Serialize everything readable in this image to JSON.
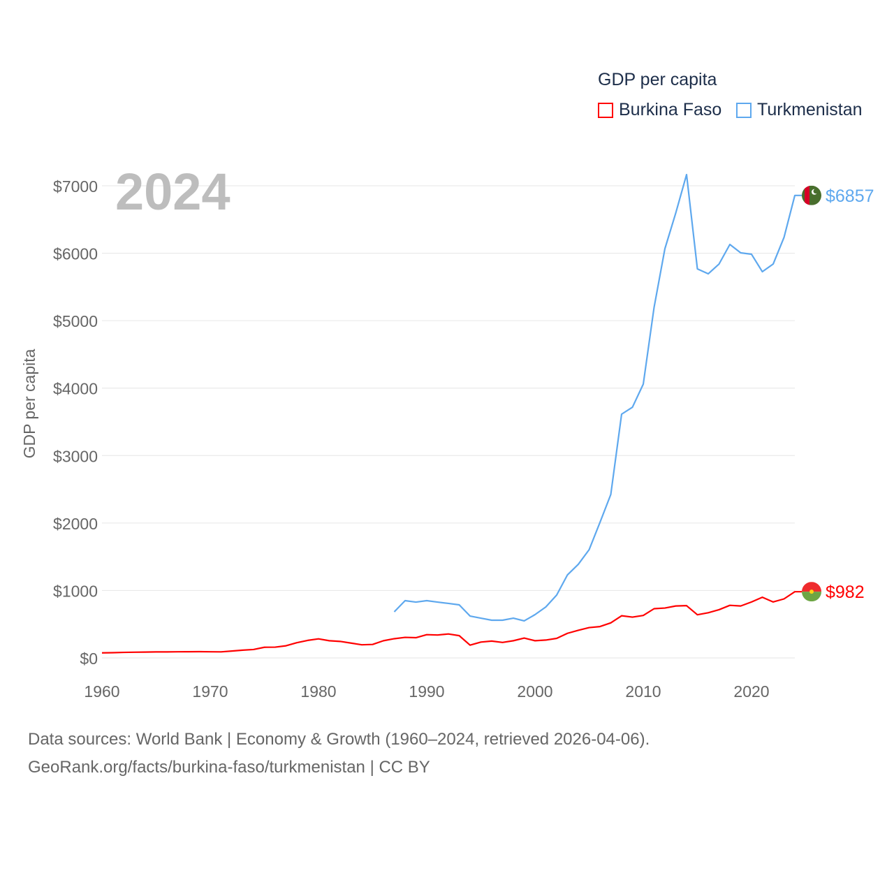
{
  "chart_data": {
    "type": "line",
    "title": "GDP per capita",
    "year_label": "2024",
    "xlabel": "",
    "ylabel": "GDP per capita",
    "xlim": [
      1960,
      2024
    ],
    "ylim": [
      0,
      7000
    ],
    "x_ticks": [
      1960,
      1970,
      1980,
      1990,
      2000,
      2010,
      2020
    ],
    "x_tick_labels": [
      "1960",
      "1970",
      "1980",
      "1990",
      "2000",
      "2010",
      "2020"
    ],
    "y_ticks": [
      0,
      1000,
      2000,
      3000,
      4000,
      5000,
      6000,
      7000
    ],
    "y_tick_labels": [
      "$0",
      "$1000",
      "$2000",
      "$3000",
      "$4000",
      "$5000",
      "$6000",
      "$7000"
    ],
    "grid": true,
    "legend_placement": "top-right",
    "series": [
      {
        "name": "Burkina Faso",
        "color": "#ff0000",
        "end_label": "$982",
        "start_year": 1960,
        "values": [
          75,
          78,
          82,
          85,
          87,
          89,
          89,
          91,
          92,
          93,
          91,
          90,
          102,
          115,
          125,
          158,
          160,
          180,
          226,
          260,
          283,
          255,
          245,
          220,
          195,
          200,
          255,
          285,
          305,
          300,
          345,
          340,
          355,
          330,
          190,
          235,
          250,
          230,
          255,
          295,
          255,
          265,
          290,
          365,
          410,
          450,
          465,
          520,
          625,
          605,
          630,
          730,
          740,
          770,
          775,
          640,
          670,
          715,
          780,
          770,
          830,
          900,
          830,
          875,
          982
        ]
      },
      {
        "name": "Turkmenistan",
        "color": "#5ea8ee",
        "end_label": "$6857",
        "start_year": 1987,
        "values": [
          683,
          849,
          828,
          849,
          828,
          808,
          787,
          621,
          590,
          559,
          559,
          590,
          549,
          642,
          756,
          932,
          1232,
          1388,
          1605,
          2009,
          2423,
          3614,
          3717,
          4059,
          5198,
          6068,
          6596,
          7166,
          5768,
          5695,
          5840,
          6130,
          6006,
          5985,
          5726,
          5840,
          6234,
          6857
        ]
      }
    ]
  },
  "footer": {
    "line1": "Data sources: World Bank | Economy & Growth (1960–2024, retrieved 2026-04-06).",
    "line2": "GeoRank.org/facts/burkina-faso/turkmenistan | CC BY"
  }
}
